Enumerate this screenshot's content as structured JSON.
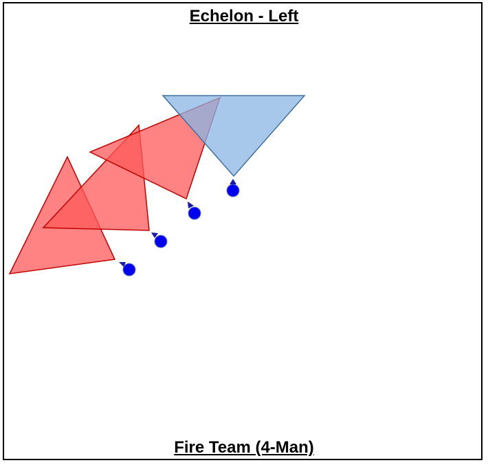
{
  "title": "Echelon - Left",
  "caption": "Fire Team (4-Man)",
  "colors": {
    "leader_sector_fill": "#a8c8ea",
    "leader_sector_stroke": "#41719c",
    "member_sector_fill": "#ff5a5a",
    "member_sector_stroke": "#c00000",
    "soldier_fill": "#0000ee",
    "soldier_stroke": "#1a1aa8",
    "frame_border": "#000000"
  },
  "formation": {
    "name": "echelon-left",
    "members": [
      {
        "role": "team-leader",
        "sector_icon": "blue-sector-triangle",
        "marker_icon": "soldier-dot-icon"
      },
      {
        "role": "member-2",
        "sector_icon": "red-sector-triangle",
        "marker_icon": "soldier-dot-icon"
      },
      {
        "role": "member-3",
        "sector_icon": "red-sector-triangle",
        "marker_icon": "soldier-dot-icon"
      },
      {
        "role": "member-4",
        "sector_icon": "red-sector-triangle",
        "marker_icon": "soldier-dot-icon"
      }
    ]
  }
}
